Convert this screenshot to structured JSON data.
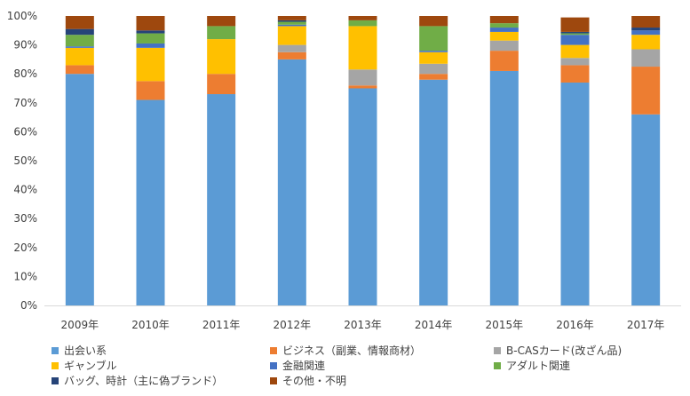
{
  "chart_data": {
    "type": "bar",
    "stacked": true,
    "title": "",
    "xlabel": "",
    "ylabel": "",
    "ylim": [
      0,
      100
    ],
    "y_ticks": [
      "0%",
      "10%",
      "20%",
      "30%",
      "40%",
      "50%",
      "60%",
      "70%",
      "80%",
      "90%",
      "100%"
    ],
    "grid": false,
    "legend_position": "bottom",
    "categories": [
      "2009年",
      "2010年",
      "2011年",
      "2012年",
      "2013年",
      "2014年",
      "2015年",
      "2016年",
      "2017年"
    ],
    "series": [
      {
        "name": "出会い系",
        "color": "#5B9BD5",
        "values": [
          80,
          71,
          73,
          85,
          75,
          78,
          81,
          77,
          66
        ]
      },
      {
        "name": "ビジネス（副業、情報商材）",
        "color": "#ED7D31",
        "values": [
          3,
          6.5,
          7,
          2.5,
          1,
          2,
          7,
          6,
          16.5
        ]
      },
      {
        "name": "B-CASカード(改ざん品)",
        "color": "#A5A5A5",
        "values": [
          0,
          0,
          0,
          2.5,
          5.5,
          3.5,
          3.5,
          2.5,
          6
        ]
      },
      {
        "name": "ギャンブル",
        "color": "#FFC000",
        "values": [
          6,
          11.5,
          12,
          6.5,
          15,
          4,
          3,
          4.5,
          5
        ]
      },
      {
        "name": "金融関連",
        "color": "#4472C4",
        "values": [
          0.5,
          1.5,
          0,
          0.5,
          0,
          0.5,
          1.5,
          3.5,
          1.5
        ]
      },
      {
        "name": "アダルト関連",
        "color": "#70AD47",
        "values": [
          4,
          3.5,
          4.5,
          1,
          2,
          8.5,
          1.5,
          0.5,
          0
        ]
      },
      {
        "name": "バッグ、時計（主に偽ブランド）",
        "color": "#264478",
        "values": [
          2,
          1,
          0,
          0.5,
          0,
          0,
          0,
          0.5,
          1
        ]
      },
      {
        "name": "その他・不明",
        "color": "#9E480E",
        "values": [
          4.5,
          5,
          3.5,
          1.5,
          1.5,
          3.5,
          2.5,
          5,
          4
        ]
      }
    ]
  }
}
